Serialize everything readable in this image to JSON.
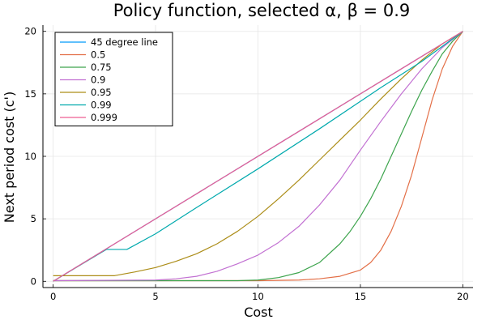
{
  "chart_data": {
    "type": "line",
    "title": "Policy function, selected α, β = 0.9",
    "xlabel": "Cost",
    "ylabel": "Next period cost (c')",
    "xlim": [
      -0.5,
      20.5
    ],
    "ylim": [
      -0.5,
      20.5
    ],
    "x_ticks": [
      0,
      5,
      10,
      15,
      20
    ],
    "y_ticks": [
      0,
      5,
      10,
      15,
      20
    ],
    "grid": true,
    "legend_position": "top-left",
    "series": [
      {
        "name": "45 degree line",
        "color": "#009AFA",
        "points": [
          [
            0,
            0
          ],
          [
            20,
            20
          ]
        ]
      },
      {
        "name": "0.5",
        "color": "#E36F47",
        "points": [
          [
            0,
            0.05
          ],
          [
            10,
            0.05
          ],
          [
            12,
            0.1
          ],
          [
            13,
            0.2
          ],
          [
            14,
            0.4
          ],
          [
            15,
            0.9
          ],
          [
            15.5,
            1.5
          ],
          [
            16,
            2.5
          ],
          [
            16.5,
            4
          ],
          [
            17,
            6
          ],
          [
            17.5,
            8.5
          ],
          [
            18,
            11.5
          ],
          [
            18.5,
            14.5
          ],
          [
            19,
            17
          ],
          [
            19.5,
            18.8
          ],
          [
            20,
            20
          ]
        ]
      },
      {
        "name": "0.75",
        "color": "#3DA44D",
        "points": [
          [
            0,
            0.05
          ],
          [
            9,
            0.05
          ],
          [
            10,
            0.1
          ],
          [
            11,
            0.3
          ],
          [
            12,
            0.7
          ],
          [
            13,
            1.5
          ],
          [
            14,
            3
          ],
          [
            14.5,
            4
          ],
          [
            15,
            5.2
          ],
          [
            15.5,
            6.6
          ],
          [
            16,
            8.2
          ],
          [
            16.5,
            10
          ],
          [
            17,
            11.8
          ],
          [
            17.5,
            13.6
          ],
          [
            18,
            15.3
          ],
          [
            18.5,
            16.8
          ],
          [
            19,
            18.2
          ],
          [
            19.5,
            19.2
          ],
          [
            20,
            20
          ]
        ]
      },
      {
        "name": "0.9",
        "color": "#C271D2",
        "points": [
          [
            0,
            0.05
          ],
          [
            5,
            0.1
          ],
          [
            6,
            0.2
          ],
          [
            7,
            0.4
          ],
          [
            8,
            0.8
          ],
          [
            9,
            1.4
          ],
          [
            10,
            2.1
          ],
          [
            11,
            3.1
          ],
          [
            12,
            4.4
          ],
          [
            13,
            6.1
          ],
          [
            14,
            8.1
          ],
          [
            15,
            10.5
          ],
          [
            16,
            12.8
          ],
          [
            17,
            15
          ],
          [
            18,
            17
          ],
          [
            19,
            18.7
          ],
          [
            20,
            20
          ]
        ]
      },
      {
        "name": "0.95",
        "color": "#AC8D18",
        "points": [
          [
            0,
            0.45
          ],
          [
            3,
            0.45
          ],
          [
            4,
            0.75
          ],
          [
            5,
            1.1
          ],
          [
            6,
            1.6
          ],
          [
            7,
            2.2
          ],
          [
            8,
            3
          ],
          [
            9,
            4
          ],
          [
            10,
            5.2
          ],
          [
            11,
            6.6
          ],
          [
            12,
            8.1
          ],
          [
            13,
            9.7
          ],
          [
            14,
            11.3
          ],
          [
            15,
            12.9
          ],
          [
            16,
            14.6
          ],
          [
            17,
            16.2
          ],
          [
            18,
            17.7
          ],
          [
            19,
            19
          ],
          [
            20,
            20
          ]
        ]
      },
      {
        "name": "0.99",
        "color": "#00A9AD",
        "points": [
          [
            0,
            0
          ],
          [
            2.6,
            2.55
          ],
          [
            3.6,
            2.55
          ],
          [
            5,
            3.8
          ],
          [
            7,
            5.9
          ],
          [
            10,
            9
          ],
          [
            13,
            12.2
          ],
          [
            16,
            15.5
          ],
          [
            18,
            17.6
          ],
          [
            20,
            20
          ]
        ]
      },
      {
        "name": "0.999",
        "color": "#ED5D92",
        "points": [
          [
            0,
            0
          ],
          [
            20,
            20
          ]
        ]
      }
    ]
  }
}
